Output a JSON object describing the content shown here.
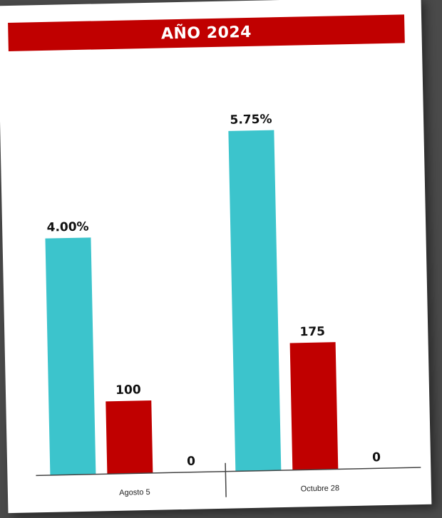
{
  "header": {
    "title": "AÑO 2024"
  },
  "colors": {
    "accent": "#c00000",
    "series_1": "#3cc4cc",
    "series_2": "#c00000",
    "axis": "#444444"
  },
  "chart_data": {
    "type": "bar",
    "categories": [
      "Agosto 5",
      "Octubre 28"
    ],
    "series": [
      {
        "name": "",
        "unit": "%",
        "values": [
          4.0,
          5.75
        ],
        "labels": [
          "4.00%",
          "5.75%"
        ],
        "ylim": [
          0,
          6.5
        ]
      },
      {
        "name": "",
        "unit": "",
        "values": [
          100,
          175
        ],
        "labels": [
          "100",
          "175"
        ],
        "ylim": [
          0,
          530
        ]
      },
      {
        "name": "",
        "unit": "",
        "values": [
          0,
          0
        ],
        "labels": [
          "0",
          "0"
        ],
        "ylim": [
          0,
          530
        ]
      }
    ],
    "title": "AÑO 2024",
    "xlabel": "",
    "ylabel": "",
    "grid": false,
    "legend": "none"
  }
}
